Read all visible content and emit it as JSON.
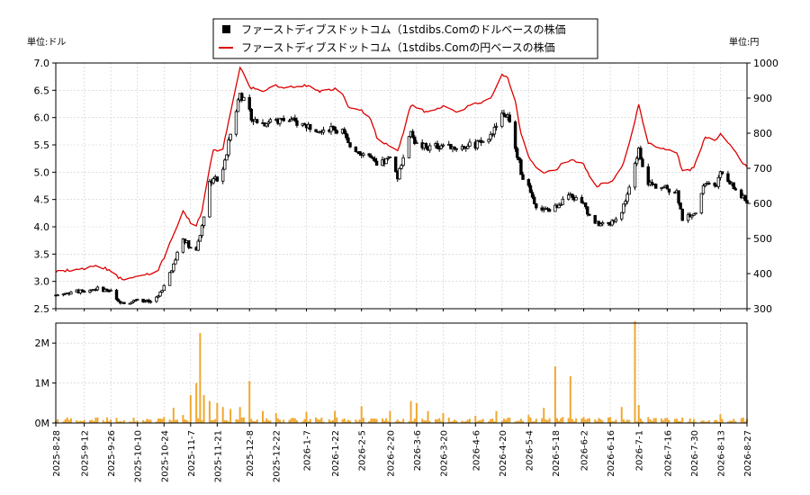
{
  "chart_data": {
    "type": "line",
    "legend": {
      "placement": "top-center",
      "entries": [
        {
          "name": "ファーストディブスドットコム（1stdibs.Comのドルベースの株価",
          "color": "#000000",
          "style": "candlestick"
        },
        {
          "name": "ファーストディブスドットコム（1stdibs.Comの円ベースの株価",
          "color": "#dd0000",
          "style": "line"
        }
      ]
    },
    "left_axis": {
      "unit_label": "単位:ドル",
      "ylim": [
        2.5,
        7.0
      ],
      "ticks": [
        "2.5",
        "3.0",
        "3.5",
        "4.0",
        "4.5",
        "5.0",
        "5.5",
        "6.0",
        "6.5",
        "7.0"
      ]
    },
    "right_axis": {
      "unit_label": "単位:円",
      "ylim": [
        300,
        1000
      ],
      "ticks": [
        "300",
        "400",
        "500",
        "600",
        "700",
        "800",
        "900",
        "1000"
      ]
    },
    "volume_axis": {
      "ylim": [
        0,
        2500000
      ],
      "ticks": [
        "0M",
        "1M",
        "2M"
      ]
    },
    "x_labels": [
      "2025-8-28",
      "2025-9-12",
      "2025-9-26",
      "2025-10-10",
      "2025-10-24",
      "2025-11-7",
      "2025-11-21",
      "2025-12-8",
      "2025-12-22",
      "2026-1-7",
      "2026-1-22",
      "2026-2-5",
      "2026-2-20",
      "2026-3-6",
      "2026-3-20",
      "2026-4-6",
      "2026-4-20",
      "2026-5-4",
      "2026-5-18",
      "2026-6-2",
      "2026-6-16",
      "2026-7-1",
      "2026-7-16",
      "2026-7-30",
      "2026-8-13",
      "2026-8-27"
    ],
    "usd_price": [
      [
        "2025-8-28",
        2.75
      ],
      [
        "2025-9-5",
        2.8
      ],
      [
        "2025-9-12",
        2.82
      ],
      [
        "2025-9-19",
        2.87
      ],
      [
        "2025-9-26",
        2.82
      ],
      [
        "2025-9-30",
        2.65
      ],
      [
        "2025-10-3",
        2.6
      ],
      [
        "2025-10-10",
        2.65
      ],
      [
        "2025-10-17",
        2.62
      ],
      [
        "2025-10-21",
        2.7
      ],
      [
        "2025-10-24",
        2.95
      ],
      [
        "2025-10-29",
        3.3
      ],
      [
        "2025-11-3",
        3.8
      ],
      [
        "2025-11-7",
        3.62
      ],
      [
        "2025-11-10",
        3.55
      ],
      [
        "2025-11-13",
        4.0
      ],
      [
        "2025-11-17",
        4.8
      ],
      [
        "2025-11-19",
        4.9
      ],
      [
        "2025-11-21",
        4.85
      ],
      [
        "2025-11-24",
        5.0
      ],
      [
        "2025-11-28",
        5.7
      ],
      [
        "2025-12-3",
        6.45
      ],
      [
        "2025-12-8",
        6.1
      ],
      [
        "2025-12-10",
        5.95
      ],
      [
        "2025-12-15",
        5.9
      ],
      [
        "2025-12-22",
        5.95
      ],
      [
        "2025-12-29",
        5.95
      ],
      [
        "2026-1-7",
        5.85
      ],
      [
        "2026-1-14",
        5.8
      ],
      [
        "2026-1-22",
        5.8
      ],
      [
        "2026-1-26",
        5.75
      ],
      [
        "2026-1-29",
        5.5
      ],
      [
        "2026-2-3",
        5.4
      ],
      [
        "2026-2-9",
        5.3
      ],
      [
        "2026-2-13",
        5.1
      ],
      [
        "2026-2-20",
        5.25
      ],
      [
        "2026-2-24",
        4.9
      ],
      [
        "2026-2-27",
        5.3
      ],
      [
        "2026-3-3",
        5.7
      ],
      [
        "2026-3-6",
        5.5
      ],
      [
        "2026-3-12",
        5.45
      ],
      [
        "2026-3-20",
        5.5
      ],
      [
        "2026-3-27",
        5.45
      ],
      [
        "2026-4-6",
        5.5
      ],
      [
        "2026-4-13",
        5.6
      ],
      [
        "2026-4-17",
        5.9
      ],
      [
        "2026-4-20",
        6.1
      ],
      [
        "2026-4-23",
        6.0
      ],
      [
        "2026-4-27",
        5.5
      ],
      [
        "2026-4-30",
        5.0
      ],
      [
        "2026-5-4",
        4.7
      ],
      [
        "2026-5-8",
        4.4
      ],
      [
        "2026-5-12",
        4.3
      ],
      [
        "2026-5-18",
        4.35
      ],
      [
        "2026-5-22",
        4.5
      ],
      [
        "2026-5-26",
        4.55
      ],
      [
        "2026-6-2",
        4.45
      ],
      [
        "2026-6-5",
        4.2
      ],
      [
        "2026-6-9",
        4.05
      ],
      [
        "2026-6-16",
        4.05
      ],
      [
        "2026-6-22",
        4.3
      ],
      [
        "2026-6-26",
        4.7
      ],
      [
        "2026-7-1",
        5.4
      ],
      [
        "2026-7-6",
        4.8
      ],
      [
        "2026-7-10",
        4.75
      ],
      [
        "2026-7-16",
        4.7
      ],
      [
        "2026-7-21",
        4.65
      ],
      [
        "2026-7-24",
        4.15
      ],
      [
        "2026-7-30",
        4.2
      ],
      [
        "2026-8-5",
        4.8
      ],
      [
        "2026-8-10",
        4.7
      ],
      [
        "2026-8-13",
        4.95
      ],
      [
        "2026-8-18",
        4.8
      ],
      [
        "2026-8-24",
        4.55
      ],
      [
        "2026-8-27",
        4.45
      ]
    ],
    "jpy_price": [
      [
        "2025-8-28",
        405
      ],
      [
        "2025-9-5",
        410
      ],
      [
        "2025-9-12",
        415
      ],
      [
        "2025-9-19",
        420
      ],
      [
        "2025-9-26",
        410
      ],
      [
        "2025-9-30",
        390
      ],
      [
        "2025-10-3",
        380
      ],
      [
        "2025-10-10",
        395
      ],
      [
        "2025-10-17",
        398
      ],
      [
        "2025-10-21",
        410
      ],
      [
        "2025-10-24",
        445
      ],
      [
        "2025-10-29",
        510
      ],
      [
        "2025-11-3",
        580
      ],
      [
        "2025-11-7",
        545
      ],
      [
        "2025-11-10",
        535
      ],
      [
        "2025-11-13",
        580
      ],
      [
        "2025-11-17",
        700
      ],
      [
        "2025-11-19",
        755
      ],
      [
        "2025-11-21",
        750
      ],
      [
        "2025-11-24",
        755
      ],
      [
        "2025-11-28",
        860
      ],
      [
        "2025-12-3",
        990
      ],
      [
        "2025-12-8",
        930
      ],
      [
        "2025-12-10",
        930
      ],
      [
        "2025-12-15",
        920
      ],
      [
        "2025-12-22",
        935
      ],
      [
        "2025-12-29",
        930
      ],
      [
        "2026-1-7",
        935
      ],
      [
        "2026-1-14",
        920
      ],
      [
        "2026-1-22",
        925
      ],
      [
        "2026-1-26",
        910
      ],
      [
        "2026-1-29",
        875
      ],
      [
        "2026-2-3",
        870
      ],
      [
        "2026-2-9",
        850
      ],
      [
        "2026-2-13",
        790
      ],
      [
        "2026-2-20",
        760
      ],
      [
        "2026-2-24",
        750
      ],
      [
        "2026-2-27",
        800
      ],
      [
        "2026-3-3",
        880
      ],
      [
        "2026-3-6",
        870
      ],
      [
        "2026-3-12",
        860
      ],
      [
        "2026-3-20",
        875
      ],
      [
        "2026-3-27",
        860
      ],
      [
        "2026-4-6",
        885
      ],
      [
        "2026-4-13",
        895
      ],
      [
        "2026-4-17",
        930
      ],
      [
        "2026-4-20",
        970
      ],
      [
        "2026-4-23",
        955
      ],
      [
        "2026-4-27",
        890
      ],
      [
        "2026-4-30",
        800
      ],
      [
        "2026-5-4",
        730
      ],
      [
        "2026-5-8",
        700
      ],
      [
        "2026-5-12",
        690
      ],
      [
        "2026-5-18",
        695
      ],
      [
        "2026-5-22",
        715
      ],
      [
        "2026-5-26",
        725
      ],
      [
        "2026-6-2",
        710
      ],
      [
        "2026-6-5",
        680
      ],
      [
        "2026-6-9",
        650
      ],
      [
        "2026-6-16",
        660
      ],
      [
        "2026-6-22",
        700
      ],
      [
        "2026-6-26",
        770
      ],
      [
        "2026-7-1",
        880
      ],
      [
        "2026-7-6",
        770
      ],
      [
        "2026-7-10",
        760
      ],
      [
        "2026-7-16",
        755
      ],
      [
        "2026-7-21",
        745
      ],
      [
        "2026-7-24",
        690
      ],
      [
        "2026-7-30",
        700
      ],
      [
        "2026-8-5",
        790
      ],
      [
        "2026-8-10",
        780
      ],
      [
        "2026-8-13",
        800
      ],
      [
        "2026-8-18",
        770
      ],
      [
        "2026-8-24",
        720
      ],
      [
        "2026-8-27",
        705
      ]
    ],
    "volume": [
      [
        "2025-8-28",
        50000
      ],
      [
        "2025-9-5",
        120000
      ],
      [
        "2025-9-12",
        80000
      ],
      [
        "2025-9-19",
        140000
      ],
      [
        "2025-9-26",
        90000
      ],
      [
        "2025-10-3",
        70000
      ],
      [
        "2025-10-10",
        60000
      ],
      [
        "2025-10-17",
        80000
      ],
      [
        "2025-10-24",
        150000
      ],
      [
        "2025-10-29",
        380000
      ],
      [
        "2025-11-3",
        200000
      ],
      [
        "2025-11-7",
        700000
      ],
      [
        "2025-11-10",
        1000000
      ],
      [
        "2025-11-12",
        2250000
      ],
      [
        "2025-11-14",
        700000
      ],
      [
        "2025-11-17",
        550000
      ],
      [
        "2025-11-21",
        500000
      ],
      [
        "2025-11-24",
        400000
      ],
      [
        "2025-11-28",
        350000
      ],
      [
        "2025-12-3",
        400000
      ],
      [
        "2025-12-8",
        1050000
      ],
      [
        "2025-12-15",
        300000
      ],
      [
        "2025-12-22",
        250000
      ],
      [
        "2026-1-7",
        280000
      ],
      [
        "2026-1-22",
        300000
      ],
      [
        "2026-2-5",
        420000
      ],
      [
        "2026-2-20",
        300000
      ],
      [
        "2026-3-3",
        550000
      ],
      [
        "2026-3-6",
        500000
      ],
      [
        "2026-3-12",
        300000
      ],
      [
        "2026-3-20",
        250000
      ],
      [
        "2026-4-6",
        180000
      ],
      [
        "2026-4-17",
        300000
      ],
      [
        "2026-5-4",
        200000
      ],
      [
        "2026-5-12",
        380000
      ],
      [
        "2026-5-18",
        1420000
      ],
      [
        "2026-5-22",
        150000
      ],
      [
        "2026-5-26",
        1170000
      ],
      [
        "2026-6-2",
        150000
      ],
      [
        "2026-6-16",
        150000
      ],
      [
        "2026-6-22",
        400000
      ],
      [
        "2026-6-29",
        2550000
      ],
      [
        "2026-7-1",
        450000
      ],
      [
        "2026-7-6",
        150000
      ],
      [
        "2026-7-16",
        120000
      ],
      [
        "2026-7-30",
        100000
      ],
      [
        "2026-8-13",
        220000
      ],
      [
        "2026-8-27",
        100000
      ]
    ]
  }
}
